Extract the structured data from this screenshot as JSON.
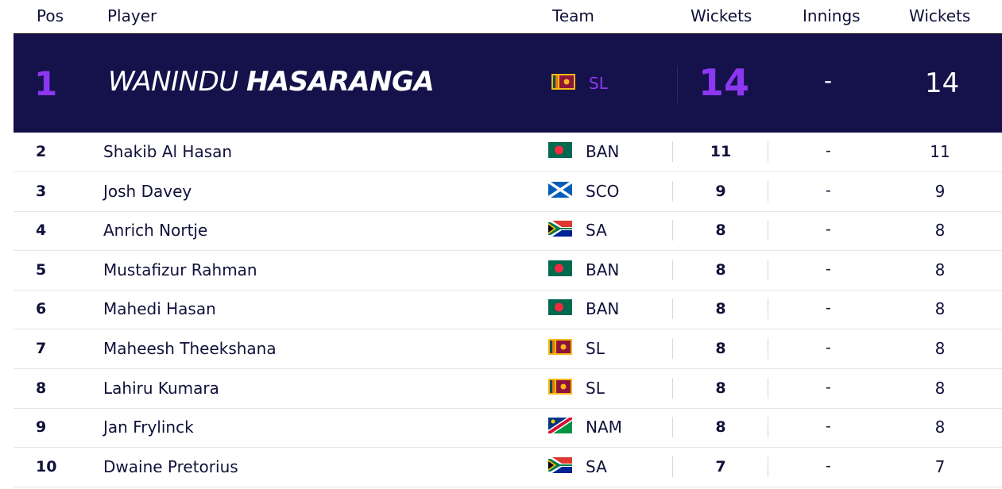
{
  "header": {
    "pos": "Pos",
    "player": "Player",
    "team": "Team",
    "wickets": "Wickets",
    "innings": "Innings",
    "wickets2": "Wickets"
  },
  "leader": {
    "pos": "1",
    "first_name": "WANINDU",
    "last_name": "HASARANGA",
    "team": "SL",
    "flag": "sri-lanka-flag-icon",
    "wickets": "14",
    "innings": "-",
    "wickets2": "14"
  },
  "rows": [
    {
      "pos": "2",
      "player": "Shakib Al Hasan",
      "team": "BAN",
      "flag": "bangladesh-flag-icon",
      "wickets": "11",
      "innings": "-",
      "wickets2": "11"
    },
    {
      "pos": "3",
      "player": "Josh Davey",
      "team": "SCO",
      "flag": "scotland-flag-icon",
      "wickets": "9",
      "innings": "-",
      "wickets2": "9"
    },
    {
      "pos": "4",
      "player": "Anrich Nortje",
      "team": "SA",
      "flag": "south-africa-flag-icon",
      "wickets": "8",
      "innings": "-",
      "wickets2": "8"
    },
    {
      "pos": "5",
      "player": "Mustafizur Rahman",
      "team": "BAN",
      "flag": "bangladesh-flag-icon",
      "wickets": "8",
      "innings": "-",
      "wickets2": "8"
    },
    {
      "pos": "6",
      "player": "Mahedi Hasan",
      "team": "BAN",
      "flag": "bangladesh-flag-icon",
      "wickets": "8",
      "innings": "-",
      "wickets2": "8"
    },
    {
      "pos": "7",
      "player": "Maheesh Theekshana",
      "team": "SL",
      "flag": "sri-lanka-flag-icon",
      "wickets": "8",
      "innings": "-",
      "wickets2": "8"
    },
    {
      "pos": "8",
      "player": "Lahiru Kumara",
      "team": "SL",
      "flag": "sri-lanka-flag-icon",
      "wickets": "8",
      "innings": "-",
      "wickets2": "8"
    },
    {
      "pos": "9",
      "player": "Jan Frylinck",
      "team": "NAM",
      "flag": "namibia-flag-icon",
      "wickets": "8",
      "innings": "-",
      "wickets2": "8"
    },
    {
      "pos": "10",
      "player": "Dwaine Pretorius",
      "team": "SA",
      "flag": "south-africa-flag-icon",
      "wickets": "7",
      "innings": "-",
      "wickets2": "7"
    }
  ],
  "colors": {
    "leader_bg": "#15114a",
    "accent_purple": "#8c37f2",
    "text_dark": "#10113a"
  }
}
